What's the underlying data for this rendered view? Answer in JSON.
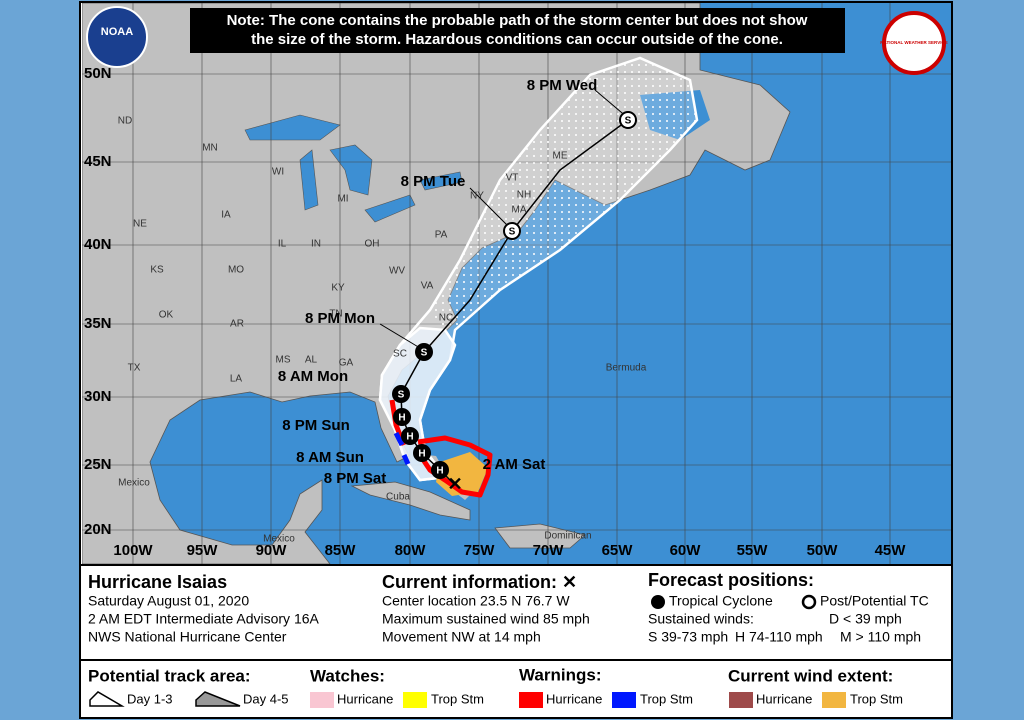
{
  "note": [
    "Note: The cone contains the probable path of the storm center but does not show",
    "the size of the storm. Hazardous conditions can occur outside of the cone."
  ],
  "logos": {
    "noaa": "NOAA",
    "nws": "NATIONAL WEATHER SERVICE"
  },
  "map": {
    "latitude_labels": [
      "50N",
      "45N",
      "40N",
      "35N",
      "30N",
      "25N",
      "20N"
    ],
    "longitude_labels": [
      "100W",
      "95W",
      "90W",
      "85W",
      "80W",
      "75W",
      "70W",
      "65W",
      "60W",
      "55W",
      "50W",
      "45W"
    ],
    "state_labels": [
      "ND",
      "MN",
      "WI",
      "MI",
      "IA",
      "NE",
      "IL",
      "IN",
      "OH",
      "PA",
      "NY",
      "KS",
      "MO",
      "KY",
      "WV",
      "VA",
      "OK",
      "AR",
      "TN",
      "NC",
      "TX",
      "MS",
      "AL",
      "GA",
      "SC",
      "LA",
      "ME",
      "VT",
      "NH",
      "MA"
    ],
    "place_labels": [
      "Bermuda",
      "Mexico",
      "Cuba",
      "Mexico",
      "Dominican"
    ],
    "forecast_labels": [
      "8 PM Wed",
      "8 PM Tue",
      "8 PM Mon",
      "8 AM Mon",
      "8 PM Sun",
      "8 AM Sun",
      "8 PM Sat",
      "2 AM Sat"
    ],
    "markers": [
      "S",
      "S",
      "S",
      "S",
      "H",
      "H",
      "H",
      "H"
    ]
  },
  "storm": {
    "name": "Hurricane Isaias",
    "date": "Saturday August 01, 2020",
    "advisory": "2 AM EDT Intermediate Advisory 16A",
    "center": "NWS National Hurricane Center"
  },
  "current": {
    "title": "Current information: ✕",
    "lines": [
      "Center location 23.5 N 76.7 W",
      "Maximum sustained wind 85 mph",
      "Movement NW at 14 mph"
    ]
  },
  "forecast": {
    "title": "Forecast positions:",
    "tropical": "Tropical Cyclone",
    "post": "Post/Potential TC",
    "winds": "Sustained winds:",
    "d": "D < 39 mph",
    "s": "S 39-73 mph",
    "h": "H 74-110 mph",
    "m": "M > 110 mph"
  },
  "legend": {
    "track": {
      "title": "Potential track area:",
      "day13": "Day 1-3",
      "day45": "Day 4-5"
    },
    "watches": {
      "title": "Watches:",
      "hurricane": "Hurricane",
      "trop": "Trop Stm"
    },
    "warnings": {
      "title": "Warnings:",
      "hurricane": "Hurricane",
      "trop": "Trop Stm"
    },
    "wind": {
      "title": "Current wind extent:",
      "hurricane": "Hurricane",
      "trop": "Trop Stm"
    }
  }
}
